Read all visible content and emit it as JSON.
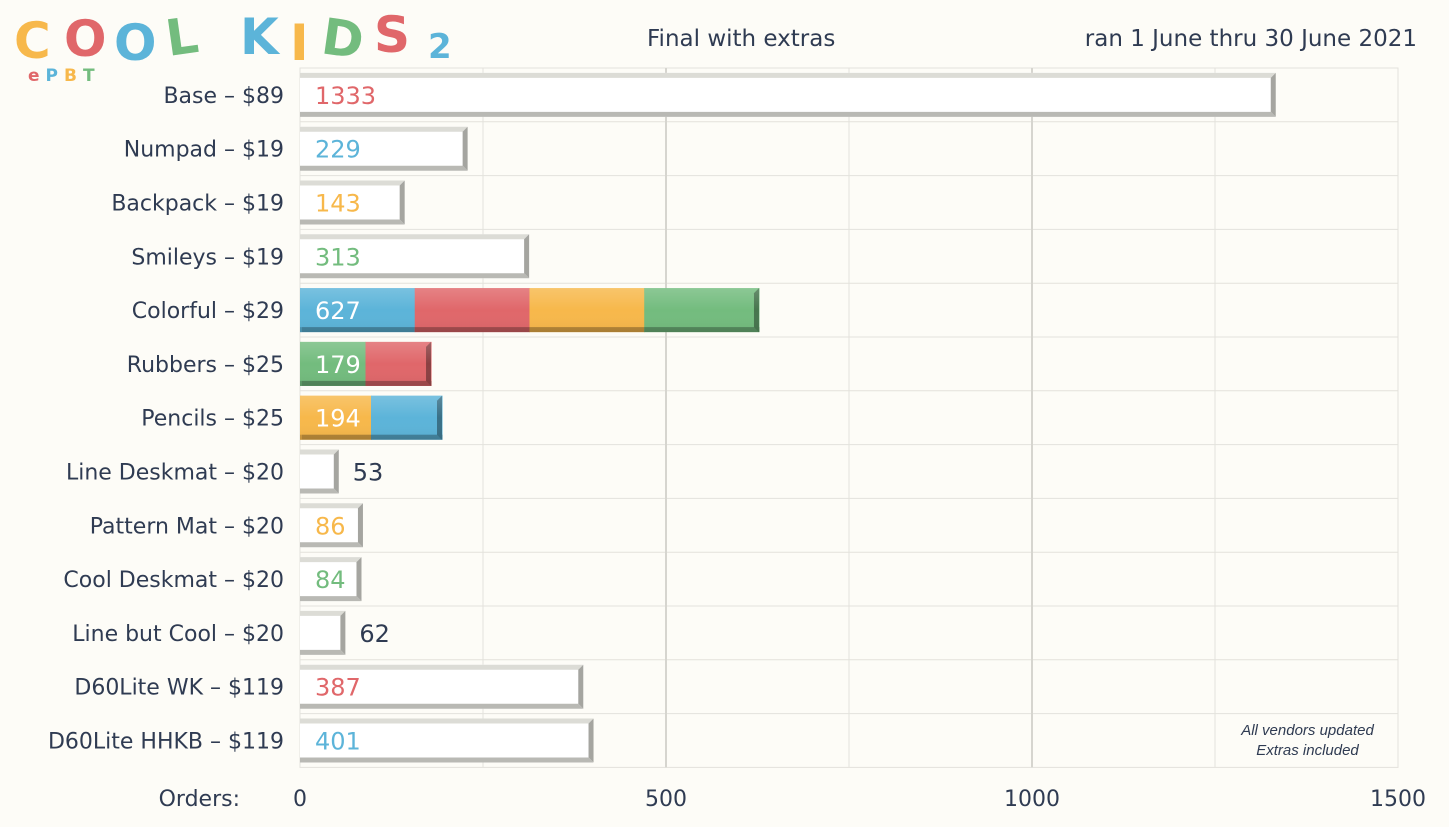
{
  "logo": {
    "letters": [
      "C",
      "O",
      "O",
      "L",
      "K",
      "I",
      "D",
      "S",
      "2"
    ],
    "letter_colors": [
      "#f7b84b",
      "#e0676a",
      "#5cb4d9",
      "#73bc7e",
      "#5cb4d9",
      "#f7b84b",
      "#73bc7e",
      "#e0676a",
      "#5cb4d9"
    ],
    "subtitle_letters": [
      "e",
      "P",
      "B",
      "T"
    ],
    "subtitle_colors": [
      "#e0676a",
      "#5cb4d9",
      "#f7b84b",
      "#73bc7e"
    ]
  },
  "header": {
    "title": "Final with extras",
    "date_range": "ran 1 June thru 30 June 2021"
  },
  "note": {
    "line1": "All vendors updated",
    "line2": "Extras included"
  },
  "colors": {
    "white": "#ffffff",
    "red": "#e0676a",
    "blue": "#5cb4d9",
    "yellow": "#f7b84b",
    "green": "#73bc7e",
    "dark": "#2f3b52",
    "grid": "#e3e2dc"
  },
  "chart_data": {
    "type": "bar",
    "orientation": "horizontal",
    "xlabel": "Orders:",
    "xlim": [
      0,
      1500
    ],
    "xticks": [
      0,
      500,
      1000,
      1500
    ],
    "grid": true,
    "categories": [
      "Base – $89",
      "Numpad – $19",
      "Backpack – $19",
      "Smileys – $19",
      "Colorful – $29",
      "Rubbers – $25",
      "Pencils – $25",
      "Line Deskmat – $20",
      "Pattern Mat – $20",
      "Cool Deskmat – $20",
      "Line but Cool – $20",
      "D60Lite WK – $119",
      "D60Lite HHKB – $119"
    ],
    "values": [
      1333,
      229,
      143,
      313,
      627,
      179,
      194,
      53,
      86,
      84,
      62,
      387,
      401
    ],
    "bar_fill": [
      "white",
      "white",
      "white",
      "white",
      "striped",
      "striped",
      "striped",
      "white",
      "white",
      "white",
      "white",
      "white",
      "white"
    ],
    "stripe_colors": [
      [],
      [],
      [],
      [],
      [
        "blue",
        "red",
        "yellow",
        "green"
      ],
      [
        "green",
        "red"
      ],
      [
        "yellow",
        "blue"
      ],
      [],
      [],
      [],
      [],
      [],
      []
    ],
    "label_colors": [
      "red",
      "blue",
      "yellow",
      "green",
      "white",
      "white",
      "white",
      "dark",
      "yellow",
      "green",
      "dark",
      "red",
      "blue"
    ],
    "label_outside": [
      false,
      false,
      false,
      false,
      false,
      false,
      false,
      true,
      false,
      false,
      true,
      false,
      false
    ]
  }
}
